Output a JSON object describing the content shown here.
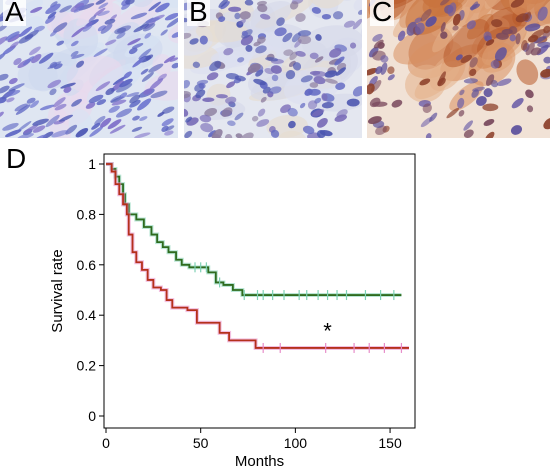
{
  "panels": {
    "a": {
      "letter": "A"
    },
    "b": {
      "letter": "B"
    },
    "c": {
      "letter": "C"
    },
    "d": {
      "letter": "D"
    }
  },
  "colors": {
    "group_green": "#2e6b1e",
    "group_red": "#b5301c",
    "censor_green": "#7fd1b5",
    "censor_red": "#e78dc9",
    "stain_blue": "#4b55b8",
    "stain_brown": "#b05a2a"
  },
  "chart_data": {
    "type": "line",
    "step": true,
    "xlabel": "Months",
    "ylabel": "Survival rate",
    "xlim": [
      0,
      160
    ],
    "ylim": [
      0,
      1
    ],
    "x_ticks": [
      0,
      50,
      100,
      150
    ],
    "y_ticks": [
      0,
      0.2,
      0.4,
      0.6,
      0.8,
      1
    ],
    "x_tick_labels": [
      "0",
      "50",
      "100",
      "150"
    ],
    "y_tick_labels": [
      "0",
      "0.2",
      "0.4",
      "0.6",
      "0.8",
      "1"
    ],
    "grid": false,
    "annotation": {
      "text": "*",
      "x": 117,
      "y": 0.34
    },
    "series": [
      {
        "color_key": "group_green",
        "censor_color_key": "censor_green",
        "steps": [
          [
            0,
            1.0
          ],
          [
            3,
            0.98
          ],
          [
            5,
            0.95
          ],
          [
            7,
            0.92
          ],
          [
            9,
            0.88
          ],
          [
            10,
            0.84
          ],
          [
            12,
            0.8
          ],
          [
            16,
            0.78
          ],
          [
            20,
            0.75
          ],
          [
            24,
            0.72
          ],
          [
            27,
            0.69
          ],
          [
            30,
            0.67
          ],
          [
            33,
            0.65
          ],
          [
            37,
            0.62
          ],
          [
            40,
            0.6
          ],
          [
            44,
            0.59
          ],
          [
            54,
            0.57
          ],
          [
            58,
            0.53
          ],
          [
            62,
            0.52
          ],
          [
            67,
            0.5
          ],
          [
            72,
            0.48
          ],
          [
            156,
            0.48
          ]
        ],
        "censor": [
          47,
          50,
          53,
          60,
          73,
          80,
          83,
          88,
          94,
          102,
          106,
          112,
          117,
          122,
          127,
          137,
          145,
          152
        ]
      },
      {
        "color_key": "group_red",
        "censor_color_key": "censor_red",
        "steps": [
          [
            0,
            1.0
          ],
          [
            3,
            0.97
          ],
          [
            5,
            0.92
          ],
          [
            7,
            0.88
          ],
          [
            9,
            0.84
          ],
          [
            11,
            0.8
          ],
          [
            12,
            0.72
          ],
          [
            14,
            0.65
          ],
          [
            16,
            0.61
          ],
          [
            19,
            0.58
          ],
          [
            22,
            0.54
          ],
          [
            25,
            0.51
          ],
          [
            29,
            0.5
          ],
          [
            32,
            0.46
          ],
          [
            35,
            0.43
          ],
          [
            43,
            0.42
          ],
          [
            48,
            0.37
          ],
          [
            60,
            0.33
          ],
          [
            65,
            0.3
          ],
          [
            79,
            0.27
          ],
          [
            160,
            0.27
          ]
        ],
        "censor": [
          83,
          92,
          116,
          131,
          139,
          147,
          156
        ]
      }
    ]
  }
}
